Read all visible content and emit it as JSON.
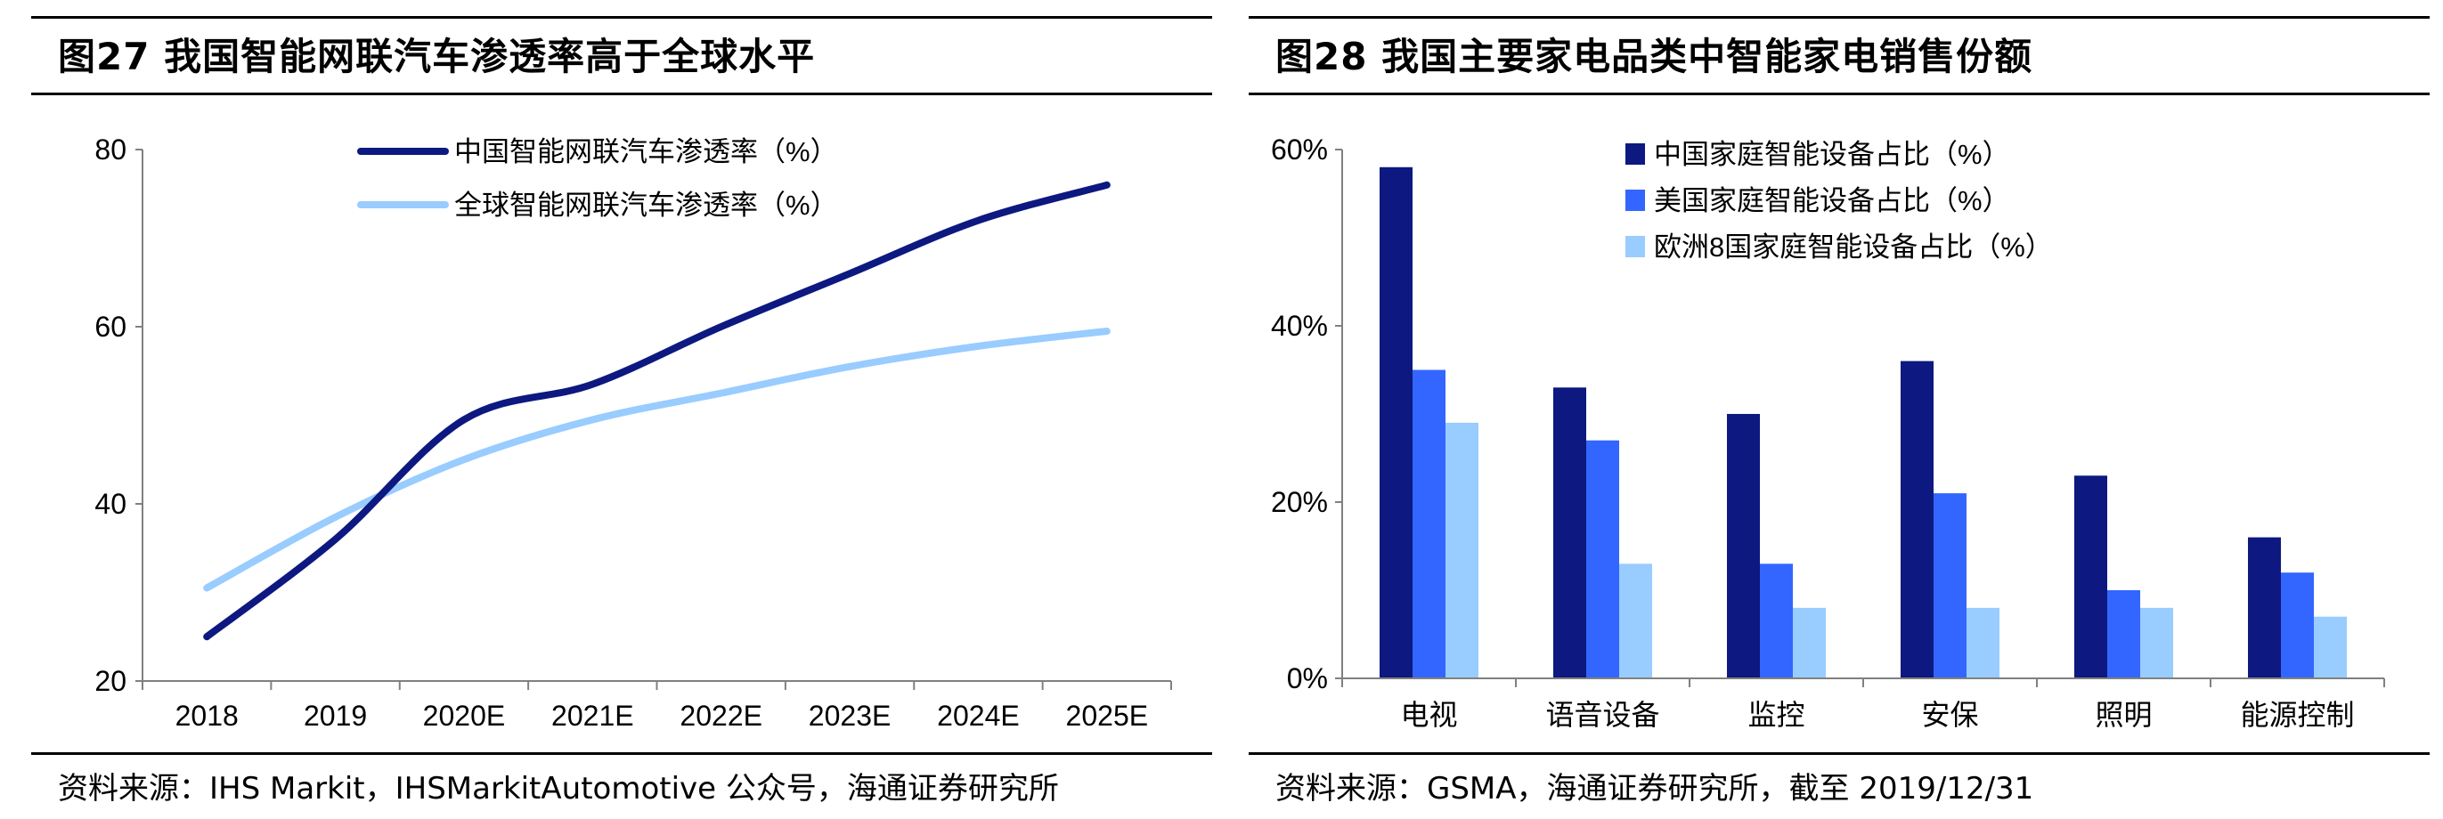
{
  "left": {
    "title": "图27 我国智能网联汽车渗透率高于全球水平",
    "source": "资料来源：IHS Markit，IHSMarkitAutomotive 公众号，海通证券研究所"
  },
  "right": {
    "title": "图28 我国主要家电品类中智能家电销售份额",
    "source": "资料来源：GSMA，海通证券研究所，截至 2019/12/31"
  },
  "chart_data": [
    {
      "type": "line",
      "x": [
        "2018",
        "2019",
        "2020E",
        "2021E",
        "2022E",
        "2023E",
        "2024E",
        "2025E"
      ],
      "ylim": [
        20,
        80
      ],
      "yticks": [
        20,
        40,
        60,
        80
      ],
      "grid": false,
      "legend_position": "top",
      "series": [
        {
          "name": "中国智能网联汽车渗透率（%）",
          "color": "#0d1880",
          "values": [
            25,
            36,
            49.5,
            53.5,
            60,
            66,
            72,
            76
          ]
        },
        {
          "name": "全球智能网联汽车渗透率（%）",
          "color": "#99ccff",
          "values": [
            30.5,
            38.5,
            45,
            49.5,
            52.5,
            55.5,
            57.8,
            59.5
          ]
        }
      ]
    },
    {
      "type": "bar",
      "categories": [
        "电视",
        "语音设备",
        "监控",
        "安保",
        "照明",
        "能源控制"
      ],
      "ylim": [
        0,
        60
      ],
      "yticks": [
        "0%",
        "20%",
        "40%",
        "60%"
      ],
      "grid": false,
      "legend_position": "top",
      "series": [
        {
          "name": "中国家庭智能设备占比（%）",
          "color": "#0d1880",
          "values": [
            58,
            33,
            30,
            36,
            23,
            16
          ]
        },
        {
          "name": "美国家庭智能设备占比（%）",
          "color": "#3366ff",
          "values": [
            35,
            27,
            13,
            21,
            10,
            12
          ]
        },
        {
          "name": "欧洲8国家庭智能设备占比（%）",
          "color": "#99ccff",
          "values": [
            29,
            13,
            8,
            8,
            8,
            7
          ]
        }
      ]
    }
  ]
}
